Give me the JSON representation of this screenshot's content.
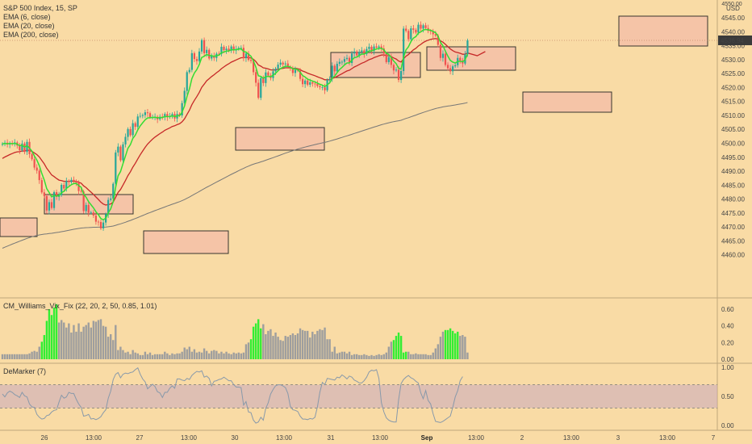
{
  "legend": {
    "title": "S&P 500 Index, 15, SP",
    "ema1": "EMA (6, close)",
    "ema2": "EMA (20, close)",
    "ema3": "EMA (200, close)",
    "vix": "CM_Williams_Vix_Fix (22, 20, 2, 50, 0.85, 1.01)",
    "demarker": "DeMarker (7)"
  },
  "price_axis": {
    "currency": "USD",
    "last_price": "4536.94",
    "ticks": [
      "4545.00",
      "4540.00",
      "4535.00",
      "4530.00",
      "4525.00",
      "4520.00",
      "4515.00",
      "4510.00",
      "4505.00",
      "4500.00",
      "4495.00",
      "4490.00",
      "4485.00",
      "4480.00",
      "4475.00",
      "4470.00",
      "4465.00",
      "4460.00"
    ]
  },
  "vix_axis": {
    "ticks": [
      "0.60",
      "0.40",
      "0.20",
      "0.00"
    ]
  },
  "dem_axis": {
    "ticks": [
      "1.00",
      "0.50",
      "0.00"
    ]
  },
  "time_axis": {
    "labels": [
      {
        "t": "26",
        "x": 55,
        "bold": false
      },
      {
        "t": "13:00",
        "x": 116,
        "bold": false
      },
      {
        "t": "27",
        "x": 173,
        "bold": false
      },
      {
        "t": "13:00",
        "x": 234,
        "bold": false
      },
      {
        "t": "30",
        "x": 291,
        "bold": false
      },
      {
        "t": "13:00",
        "x": 352,
        "bold": false
      },
      {
        "t": "31",
        "x": 410,
        "bold": false
      },
      {
        "t": "13:00",
        "x": 471,
        "bold": false
      },
      {
        "t": "Sep",
        "x": 529,
        "bold": true
      },
      {
        "t": "13:00",
        "x": 590,
        "bold": false
      },
      {
        "t": "2",
        "x": 647,
        "bold": false
      },
      {
        "t": "13:00",
        "x": 708,
        "bold": false
      },
      {
        "t": "3",
        "x": 766,
        "bold": false
      },
      {
        "t": "13:00",
        "x": 827,
        "bold": false
      },
      {
        "t": "7",
        "x": 884,
        "bold": false
      }
    ]
  },
  "colors": {
    "bg": "#f9dba5",
    "up": "#26a69a",
    "down": "#ef5350",
    "ema6": "#33dd33",
    "ema20": "#c62828",
    "ema200": "#777777",
    "box_fill": "#f5c2a8",
    "box_stroke": "#222222",
    "vix_gray": "#9e9e9e",
    "vix_green": "#33ee33",
    "dem_line": "#8899aa",
    "dem_band": "#c9a8c0"
  },
  "chart_data": [
    {
      "type": "candlestick",
      "title": "S&P 500 Index, 15, SP",
      "ylim": [
        4458,
        4548
      ],
      "close": [
        4499.8,
        4500.2,
        4499.6,
        4500.1,
        4499.7,
        4500.3,
        4499.2,
        4497.5,
        4499.9,
        4496.9,
        4500.5,
        4496.1,
        4494.3,
        4491.3,
        4490.2,
        4486.8,
        4482.4,
        4481.1,
        4475.9,
        4478.9,
        4476.8,
        4482.5,
        4480.8,
        4481.4,
        4485.1,
        4483.8,
        4486.5,
        4486.1,
        4486.9,
        4486.5,
        4485.8,
        4482.9,
        4482.7,
        4475.7,
        4477.9,
        4475.1,
        4475.2,
        4474.1,
        4471.9,
        4471.8,
        4469.5,
        4471.6,
        4474.6,
        4479.7,
        4480.2,
        4485.5,
        4496.7,
        4498.8,
        4493.9,
        4499.6,
        4502.3,
        4505.1,
        4502.9,
        4507.2,
        4505.9,
        4509.6,
        4509.8,
        4510.1,
        4511.1,
        4510.8,
        4509.4,
        4509.4,
        4509.5,
        4508.6,
        4509.5,
        4509.3,
        4510.5,
        4509.4,
        4509.7,
        4510.5,
        4508.9,
        4510.5,
        4510.0,
        4514.4,
        4518.8,
        4525.5,
        4526.3,
        4532.3,
        4530.2,
        4529.5,
        4532.9,
        4537.0,
        4532.3,
        4533.5,
        4530.4,
        4531.3,
        4530.6,
        4532.1,
        4532.0,
        4534.6,
        4533.4,
        4533.9,
        4533.2,
        4534.7,
        4533.3,
        4533.8,
        4534.2,
        4534.2,
        4530.5,
        4532.2,
        4529.9,
        4529.5,
        4525.5,
        4521.7,
        4516.3,
        4523.4,
        4521.6,
        4525.4,
        4524.3,
        4523.4,
        4525.8,
        4526.8,
        4528.2,
        4528.9,
        4528.3,
        4528.6,
        4527.4,
        4526.8,
        4525.2,
        4526.3,
        4526.1,
        4523.1,
        4521.2,
        4522.5,
        4521.0,
        4521.9,
        4521.4,
        4521.3,
        4520.5,
        4520.1,
        4520.1,
        4519.0,
        4522.7,
        4523.1,
        4527.8,
        4525.8,
        4528.5,
        4529.2,
        4529.2,
        4530.2,
        4530.6,
        4528.8,
        4532.2,
        4532.9,
        4531.5,
        4532.8,
        4533.3,
        4532.0,
        4533.8,
        4534.6,
        4533.1,
        4534.7,
        4534.3,
        4534.7,
        4534.0,
        4532.2,
        4529.1,
        4530.9,
        4528.1,
        4526.1,
        4526.4,
        4522.7,
        4525.9,
        4541.1,
        4540.3,
        4537.3,
        4541.2,
        4540.7,
        4539.7,
        4542.5,
        4541.1,
        4542.3,
        4541.3,
        4540.3,
        4540.1,
        4539.1,
        4538.6,
        4535.3,
        4530.6,
        4532.1,
        4528.1,
        4526.9,
        4525.8,
        4527.6,
        4528.0,
        4530.6,
        4529.7,
        4528.6,
        4531.9,
        4536.9
      ]
    },
    {
      "type": "bar",
      "title": "CM_Williams_Vix_Fix (22, 20, 2, 50, 0.85, 1.01)",
      "ylim": [
        0,
        0.7
      ],
      "values": [
        0.06,
        0.06,
        0.06,
        0.06,
        0.06,
        0.06,
        0.06,
        0.06,
        0.06,
        0.06,
        0.06,
        0.07,
        0.09,
        0.1,
        0.09,
        0.15,
        0.21,
        0.29,
        0.46,
        0.6,
        0.53,
        0.62,
        0.66,
        0.44,
        0.47,
        0.44,
        0.38,
        0.43,
        0.32,
        0.41,
        0.33,
        0.43,
        0.33,
        0.39,
        0.41,
        0.44,
        0.38,
        0.46,
        0.45,
        0.47,
        0.48,
        0.4,
        0.39,
        0.27,
        0.3,
        0.23,
        0.41,
        0.11,
        0.15,
        0.11,
        0.08,
        0.09,
        0.06,
        0.11,
        0.08,
        0.07,
        0.05,
        0.05,
        0.09,
        0.06,
        0.08,
        0.05,
        0.06,
        0.06,
        0.06,
        0.06,
        0.09,
        0.07,
        0.05,
        0.07,
        0.06,
        0.07,
        0.07,
        0.09,
        0.14,
        0.12,
        0.15,
        0.09,
        0.12,
        0.08,
        0.09,
        0.08,
        0.13,
        0.1,
        0.07,
        0.1,
        0.11,
        0.1,
        0.07,
        0.09,
        0.07,
        0.09,
        0.07,
        0.06,
        0.08,
        0.07,
        0.08,
        0.07,
        0.08,
        0.18,
        0.2,
        0.24,
        0.39,
        0.43,
        0.48,
        0.37,
        0.42,
        0.3,
        0.34,
        0.36,
        0.28,
        0.32,
        0.27,
        0.23,
        0.22,
        0.28,
        0.27,
        0.29,
        0.31,
        0.29,
        0.31,
        0.37,
        0.35,
        0.34,
        0.34,
        0.26,
        0.33,
        0.3,
        0.34,
        0.36,
        0.35,
        0.38,
        0.24,
        0.24,
        0.09,
        0.15,
        0.07,
        0.08,
        0.09,
        0.09,
        0.07,
        0.09,
        0.05,
        0.06,
        0.06,
        0.05,
        0.05,
        0.06,
        0.05,
        0.04,
        0.05,
        0.04,
        0.05,
        0.06,
        0.05,
        0.06,
        0.08,
        0.15,
        0.21,
        0.23,
        0.28,
        0.32,
        0.28,
        0.08,
        0.09,
        0.09,
        0.06,
        0.06,
        0.07,
        0.06,
        0.06,
        0.06,
        0.06,
        0.05,
        0.05,
        0.08,
        0.13,
        0.18,
        0.27,
        0.33,
        0.35,
        0.35,
        0.37,
        0.34,
        0.31,
        0.33,
        0.28,
        0.29,
        0.27,
        0.08
      ],
      "highlighted_green_ranges": [
        [
          16,
          22
        ],
        [
          101,
          105
        ],
        [
          159,
          164
        ],
        [
          180,
          185
        ]
      ]
    },
    {
      "type": "line",
      "title": "DeMarker (7)",
      "ylim": [
        0,
        1
      ],
      "band": [
        0.3,
        0.7
      ],
      "values": [
        0.54,
        0.49,
        0.56,
        0.59,
        0.57,
        0.53,
        0.51,
        0.48,
        0.57,
        0.51,
        0.49,
        0.37,
        0.32,
        0.31,
        0.19,
        0.14,
        0.11,
        0.12,
        0.17,
        0.18,
        0.23,
        0.26,
        0.27,
        0.4,
        0.52,
        0.47,
        0.49,
        0.57,
        0.55,
        0.55,
        0.45,
        0.37,
        0.31,
        0.16,
        0.17,
        0.19,
        0.11,
        0.12,
        0.1,
        0.12,
        0.15,
        0.22,
        0.27,
        0.47,
        0.59,
        0.79,
        0.88,
        0.91,
        0.82,
        0.88,
        0.9,
        0.89,
        0.91,
        0.92,
        0.96,
        0.99,
        0.88,
        0.8,
        0.75,
        0.63,
        0.67,
        0.71,
        0.67,
        0.58,
        0.56,
        0.48,
        0.57,
        0.57,
        0.64,
        0.68,
        0.64,
        0.8,
        0.8,
        0.78,
        0.77,
        0.81,
        0.79,
        0.86,
        0.9,
        0.93,
        0.92,
        0.94,
        0.83,
        0.85,
        0.81,
        0.68,
        0.76,
        0.77,
        0.79,
        0.8,
        0.83,
        0.8,
        0.77,
        0.77,
        0.7,
        0.66,
        0.66,
        0.65,
        0.35,
        0.41,
        0.23,
        0.22,
        0.09,
        0.04,
        0.06,
        0.14,
        0.09,
        0.29,
        0.39,
        0.54,
        0.62,
        0.68,
        0.7,
        0.7,
        0.68,
        0.65,
        0.55,
        0.33,
        0.27,
        0.26,
        0.24,
        0.16,
        0.11,
        0.11,
        0.1,
        0.12,
        0.11,
        0.14,
        0.32,
        0.57,
        0.74,
        0.7,
        0.81,
        0.8,
        0.79,
        0.78,
        0.83,
        0.82,
        0.87,
        0.84,
        0.8,
        0.85,
        0.83,
        0.78,
        0.76,
        0.73,
        0.73,
        0.77,
        0.83,
        0.92,
        0.95,
        0.94,
        0.96,
        0.81,
        0.39,
        0.23,
        0.13,
        0.09,
        0.07,
        0.06,
        0.06,
        0.44,
        0.72,
        0.79,
        0.83,
        0.86,
        0.82,
        0.8,
        0.76,
        0.73,
        0.56,
        0.46,
        0.6,
        0.43,
        0.37,
        0.2,
        0.07,
        0.06,
        0.05,
        0.07,
        0.1,
        0.13,
        0.16,
        0.31,
        0.49,
        0.6,
        0.77,
        0.84
      ]
    }
  ]
}
